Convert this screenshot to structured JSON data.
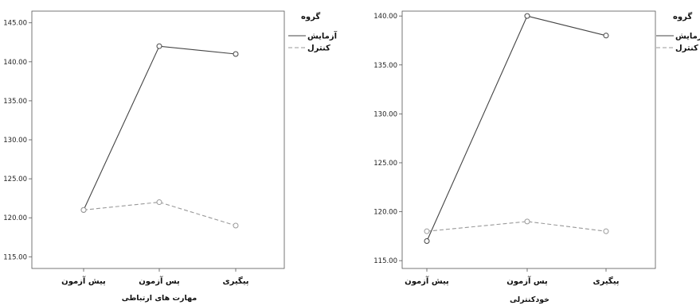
{
  "chart_data": [
    {
      "type": "line",
      "categories": [
        "پیش آزمون",
        "پس آزمون",
        "پیگیری"
      ],
      "series": [
        {
          "name": "آزمایش",
          "values": [
            121,
            142,
            141
          ],
          "color": "#444444",
          "style": "solid"
        },
        {
          "name": "کنترل",
          "values": [
            121,
            122,
            119
          ],
          "color": "#999999",
          "style": "dashed"
        }
      ],
      "xlabel": "مهارت های ارتباطی",
      "ylabel": "",
      "ylim": [
        113.5,
        146.5
      ],
      "yticks": [
        115,
        120,
        125,
        130,
        135,
        140,
        145
      ],
      "ytick_labels": [
        "115.00",
        "120.00",
        "125.00",
        "130.00",
        "135.00",
        "140.00",
        "145.00"
      ],
      "legend_title": "گروه",
      "legend_position": "right",
      "grid": false
    },
    {
      "type": "line",
      "categories": [
        "پیش آزمون",
        "پس آزمون",
        "پیگیری"
      ],
      "series": [
        {
          "name": "آزمایش",
          "values": [
            117,
            140,
            138
          ],
          "color": "#444444",
          "style": "solid"
        },
        {
          "name": "کنترل",
          "values": [
            118,
            119,
            118
          ],
          "color": "#999999",
          "style": "dashed"
        }
      ],
      "xlabel": "خودکنترلی",
      "ylabel": "",
      "ylim": [
        114.2,
        140.5
      ],
      "yticks": [
        115,
        120,
        125,
        130,
        135,
        140
      ],
      "ytick_labels": [
        "115.00",
        "120.00",
        "125.00",
        "130.00",
        "135.00",
        "140.00"
      ],
      "legend_title": "گروه",
      "legend_position": "right",
      "grid": false
    }
  ]
}
